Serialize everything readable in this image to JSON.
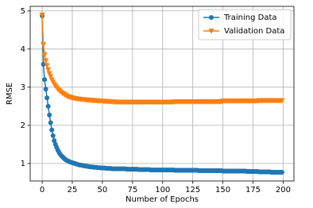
{
  "chart_data": {
    "type": "line",
    "xlabel": "Number of Epochs",
    "ylabel": "RMSE",
    "x": [
      0,
      1,
      2,
      3,
      4,
      5,
      6,
      7,
      8,
      9,
      10,
      11,
      12,
      13,
      14,
      15,
      16,
      17,
      18,
      19,
      20,
      21,
      22,
      23,
      24,
      25,
      26,
      27,
      28,
      29,
      30,
      31,
      32,
      33,
      34,
      35,
      36,
      37,
      38,
      39,
      40,
      41,
      42,
      43,
      44,
      45,
      46,
      47,
      48,
      49,
      50,
      51,
      52,
      53,
      54,
      55,
      56,
      57,
      58,
      59,
      60,
      61,
      62,
      63,
      64,
      65,
      66,
      67,
      68,
      69,
      70,
      71,
      72,
      73,
      74,
      75,
      76,
      77,
      78,
      79,
      80,
      81,
      82,
      83,
      84,
      85,
      86,
      87,
      88,
      89,
      90,
      91,
      92,
      93,
      94,
      95,
      96,
      97,
      98,
      99,
      100,
      101,
      102,
      103,
      104,
      105,
      106,
      107,
      108,
      109,
      110,
      111,
      112,
      113,
      114,
      115,
      116,
      117,
      118,
      119,
      120,
      121,
      122,
      123,
      124,
      125,
      126,
      127,
      128,
      129,
      130,
      131,
      132,
      133,
      134,
      135,
      136,
      137,
      138,
      139,
      140,
      141,
      142,
      143,
      144,
      145,
      146,
      147,
      148,
      149,
      150,
      151,
      152,
      153,
      154,
      155,
      156,
      157,
      158,
      159,
      160,
      161,
      162,
      163,
      164,
      165,
      166,
      167,
      168,
      169,
      170,
      171,
      172,
      173,
      174,
      175,
      176,
      177,
      178,
      179,
      180,
      181,
      182,
      183,
      184,
      185,
      186,
      187,
      188,
      189,
      190,
      191,
      192,
      193,
      194,
      195,
      196,
      197,
      198,
      199
    ],
    "series": [
      {
        "name": "Training Data",
        "color": "#1f77b4",
        "marker": "circle",
        "values": [
          4.87,
          3.6,
          3.2,
          2.95,
          2.72,
          2.5,
          2.27,
          2.07,
          1.88,
          1.73,
          1.6,
          1.5,
          1.42,
          1.35,
          1.29,
          1.24,
          1.2,
          1.17,
          1.14,
          1.11,
          1.09,
          1.07,
          1.06,
          1.04,
          1.03,
          1.02,
          1.01,
          1.0,
          0.99,
          0.98,
          0.97,
          0.96,
          0.96,
          0.95,
          0.94,
          0.94,
          0.93,
          0.93,
          0.92,
          0.92,
          0.91,
          0.91,
          0.91,
          0.9,
          0.9,
          0.9,
          0.89,
          0.89,
          0.89,
          0.88,
          0.88,
          0.88,
          0.88,
          0.87,
          0.87,
          0.87,
          0.87,
          0.87,
          0.86,
          0.86,
          0.86,
          0.86,
          0.86,
          0.86,
          0.86,
          0.86,
          0.86,
          0.86,
          0.86,
          0.86,
          0.85,
          0.85,
          0.85,
          0.85,
          0.85,
          0.85,
          0.85,
          0.85,
          0.85,
          0.85,
          0.84,
          0.84,
          0.84,
          0.84,
          0.84,
          0.84,
          0.84,
          0.84,
          0.84,
          0.84,
          0.83,
          0.83,
          0.83,
          0.83,
          0.83,
          0.83,
          0.83,
          0.83,
          0.83,
          0.83,
          0.83,
          0.83,
          0.83,
          0.83,
          0.83,
          0.83,
          0.83,
          0.83,
          0.83,
          0.83,
          0.82,
          0.82,
          0.82,
          0.82,
          0.82,
          0.82,
          0.82,
          0.82,
          0.82,
          0.82,
          0.82,
          0.82,
          0.82,
          0.82,
          0.82,
          0.82,
          0.82,
          0.82,
          0.82,
          0.82,
          0.81,
          0.81,
          0.81,
          0.81,
          0.81,
          0.81,
          0.81,
          0.81,
          0.81,
          0.81,
          0.81,
          0.81,
          0.81,
          0.81,
          0.81,
          0.81,
          0.81,
          0.81,
          0.81,
          0.81,
          0.8,
          0.8,
          0.8,
          0.8,
          0.8,
          0.8,
          0.8,
          0.8,
          0.8,
          0.8,
          0.8,
          0.8,
          0.8,
          0.8,
          0.8,
          0.8,
          0.8,
          0.8,
          0.8,
          0.8,
          0.79,
          0.79,
          0.79,
          0.79,
          0.79,
          0.79,
          0.79,
          0.79,
          0.79,
          0.79,
          0.78,
          0.78,
          0.78,
          0.78,
          0.78,
          0.78,
          0.78,
          0.78,
          0.78,
          0.78,
          0.77,
          0.77,
          0.77,
          0.77,
          0.77,
          0.77,
          0.77,
          0.77,
          0.77,
          0.77
        ]
      },
      {
        "name": "Validation Data",
        "color": "#ff7f0e",
        "marker": "triangle-down",
        "values": [
          4.9,
          4.12,
          3.85,
          3.7,
          3.57,
          3.46,
          3.36,
          3.28,
          3.2,
          3.14,
          3.08,
          3.03,
          2.99,
          2.95,
          2.92,
          2.89,
          2.86,
          2.84,
          2.82,
          2.8,
          2.78,
          2.76,
          2.75,
          2.74,
          2.73,
          2.72,
          2.71,
          2.71,
          2.7,
          2.7,
          2.69,
          2.69,
          2.68,
          2.68,
          2.68,
          2.67,
          2.67,
          2.67,
          2.66,
          2.66,
          2.66,
          2.66,
          2.65,
          2.65,
          2.65,
          2.65,
          2.64,
          2.64,
          2.64,
          2.64,
          2.64,
          2.63,
          2.63,
          2.63,
          2.63,
          2.62,
          2.62,
          2.62,
          2.62,
          2.62,
          2.61,
          2.61,
          2.61,
          2.61,
          2.61,
          2.61,
          2.61,
          2.61,
          2.61,
          2.61,
          2.61,
          2.61,
          2.61,
          2.61,
          2.61,
          2.61,
          2.61,
          2.61,
          2.61,
          2.61,
          2.61,
          2.61,
          2.61,
          2.61,
          2.61,
          2.61,
          2.61,
          2.61,
          2.61,
          2.61,
          2.61,
          2.61,
          2.61,
          2.61,
          2.61,
          2.61,
          2.61,
          2.61,
          2.61,
          2.61,
          2.61,
          2.61,
          2.61,
          2.61,
          2.61,
          2.61,
          2.61,
          2.61,
          2.61,
          2.61,
          2.62,
          2.62,
          2.62,
          2.62,
          2.62,
          2.62,
          2.62,
          2.62,
          2.62,
          2.62,
          2.62,
          2.62,
          2.62,
          2.62,
          2.62,
          2.62,
          2.62,
          2.62,
          2.62,
          2.62,
          2.62,
          2.62,
          2.62,
          2.62,
          2.62,
          2.62,
          2.62,
          2.62,
          2.62,
          2.62,
          2.62,
          2.62,
          2.62,
          2.62,
          2.62,
          2.62,
          2.62,
          2.62,
          2.62,
          2.62,
          2.64,
          2.64,
          2.64,
          2.64,
          2.64,
          2.64,
          2.64,
          2.64,
          2.64,
          2.64,
          2.64,
          2.64,
          2.64,
          2.64,
          2.64,
          2.64,
          2.64,
          2.64,
          2.64,
          2.64,
          2.64,
          2.64,
          2.64,
          2.64,
          2.64,
          2.64,
          2.64,
          2.64,
          2.64,
          2.64,
          2.65,
          2.65,
          2.65,
          2.65,
          2.65,
          2.65,
          2.65,
          2.65,
          2.65,
          2.65,
          2.65,
          2.65,
          2.65,
          2.65,
          2.65,
          2.65,
          2.65,
          2.65,
          2.65,
          2.65
        ]
      }
    ],
    "xlim": [
      -9.95,
      208.95
    ],
    "ylim": [
      0.54,
      5.12
    ],
    "xticks": [
      0,
      25,
      50,
      75,
      100,
      125,
      150,
      175,
      200
    ],
    "yticks": [
      1,
      2,
      3,
      4,
      5
    ],
    "grid": true,
    "legend": "upper right"
  }
}
